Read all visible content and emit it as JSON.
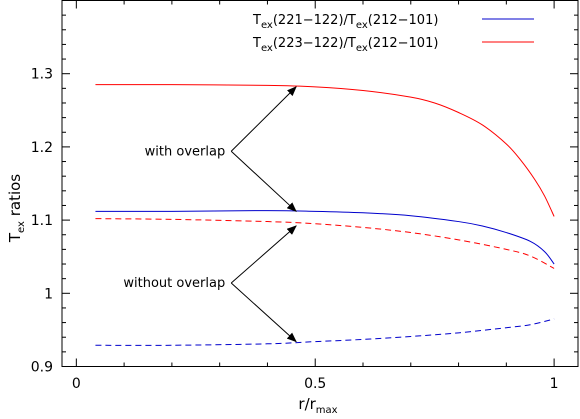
{
  "chart_data": {
    "type": "line",
    "ylabel": {
      "main": "T",
      "sub": "ex",
      "rest": " ratios"
    },
    "xlabel": {
      "main": "r/r",
      "sub": "max"
    },
    "xlim": [
      -0.03,
      1.05
    ],
    "ylim": [
      0.9,
      1.4
    ],
    "xticks": [
      0,
      0.5,
      1
    ],
    "xtick_labels": [
      "0",
      "0.5",
      "1"
    ],
    "yticks": [
      0.9,
      1,
      1.1,
      1.2,
      1.3
    ],
    "ytick_labels": [
      "0.9",
      "1",
      "1.1",
      "1.2",
      "1.3"
    ],
    "legend_position": "top-right",
    "series": [
      {
        "legend": [
          {
            "t": "T",
            "s": "ex"
          },
          {
            "t": "(221−122)/T"
          },
          {
            "s": "ex"
          },
          {
            "t": "(212−101)"
          }
        ],
        "color": "#0000cc",
        "style": "solid",
        "x": [
          0.04,
          0.2,
          0.4,
          0.5,
          0.6,
          0.7,
          0.8,
          0.85,
          0.9,
          0.95,
          0.98,
          1.0
        ],
        "y": [
          1.112,
          1.112,
          1.113,
          1.112,
          1.11,
          1.106,
          1.098,
          1.092,
          1.083,
          1.071,
          1.057,
          1.04
        ]
      },
      {
        "legend": [
          {
            "t": "T",
            "s": "ex"
          },
          {
            "t": "(223−122)/T"
          },
          {
            "s": "ex"
          },
          {
            "t": "(212−101)"
          }
        ],
        "color": "#ff0000",
        "style": "solid",
        "x": [
          0.04,
          0.2,
          0.4,
          0.5,
          0.6,
          0.7,
          0.75,
          0.8,
          0.85,
          0.9,
          0.93,
          0.96,
          0.98,
          1.0
        ],
        "y": [
          1.285,
          1.285,
          1.284,
          1.282,
          1.277,
          1.268,
          1.26,
          1.247,
          1.23,
          1.204,
          1.182,
          1.155,
          1.133,
          1.105
        ]
      },
      {
        "color": "#ff0000",
        "style": "dashed",
        "x": [
          0.04,
          0.2,
          0.4,
          0.5,
          0.6,
          0.7,
          0.8,
          0.9,
          0.95,
          1.0
        ],
        "y": [
          1.102,
          1.101,
          1.098,
          1.095,
          1.09,
          1.083,
          1.073,
          1.06,
          1.051,
          1.034
        ]
      },
      {
        "color": "#0000cc",
        "style": "dashed",
        "x": [
          0.04,
          0.2,
          0.4,
          0.5,
          0.6,
          0.7,
          0.8,
          0.9,
          0.95,
          1.0
        ],
        "y": [
          0.929,
          0.929,
          0.931,
          0.934,
          0.937,
          0.941,
          0.946,
          0.953,
          0.957,
          0.965
        ]
      }
    ],
    "annotations": [
      {
        "text": "with overlap",
        "from": [
          0.32,
          1.194
        ],
        "to": [
          [
            0.46,
            1.282
          ],
          [
            0.46,
            1.112
          ]
        ]
      },
      {
        "text": "without overlap",
        "from": [
          0.32,
          1.014
        ],
        "to": [
          [
            0.46,
            1.092
          ],
          [
            0.46,
            0.934
          ]
        ]
      }
    ]
  }
}
